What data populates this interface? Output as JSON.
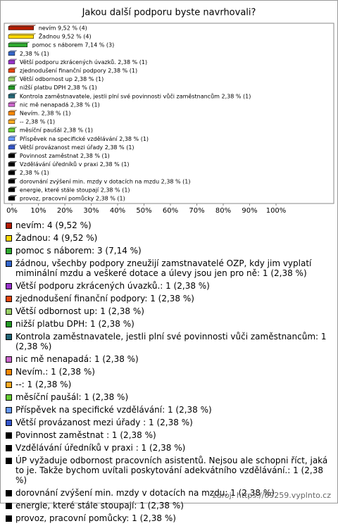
{
  "chart_data": {
    "type": "bar",
    "orientation": "horizontal",
    "title": "Jakou další podporu byste navrhovali?",
    "categories": [
      "nevím: 4 (9,52 %)",
      "Žadnou: 4 (9,52 %)",
      "pomoc s náborem: 3 (7,14 %)",
      "žádnou, všechby podpory zneužijí zamstnavatelé OZP, kdy jim vyplatí miminální mzdu a veškeré dotace a úlevy jsou jen pro ně: 1 (2,38 %)",
      "Větší podporu zkrácených úvazků.: 1 (2,38 %)",
      "zjednodušení finanční podpory: 1 (2,38 %)",
      "Větší odbornost up: 1 (2,38 %)",
      "nižší platbu DPH: 1 (2,38 %)",
      "Kontrola zaměstnavatele, jestli plní své povinnosti vůči zaměstnancům: 1 (2,38 %)",
      "nic mě nenapadá: 1 (2,38 %)",
      "Nevím.: 1 (2,38 %)",
      "--: 1 (2,38 %)",
      "měsíční paušál: 1 (2,38 %)",
      "Příspěvek na specifické vzdělávání: 1 (2,38 %)",
      "Větší provázanost mezi úřady : 1 (2,38 %)",
      "Povinnost zaměstnat : 1 (2,38 %)",
      "Vzdělávání úředníků v praxi : 1 (2,38 %)",
      "ÚP vyžaduje odbornost pracovních asistentů. Nejsou ale schopni říct, jaká to je. Takže bychom uvítali poskytování adekvátního vzdělávání.: 1 (2,38 %)",
      "dorovnání zvýšení min. mzdy v dotacích na mzdu: 1 (2,38 %)",
      "energie, které stále stoupají: 1 (2,38 %)",
      "provoz, pracovní pomůcky: 1 (2,38 %)"
    ],
    "values": [
      9.52,
      9.52,
      7.14,
      2.38,
      2.38,
      2.38,
      2.38,
      2.38,
      2.38,
      2.38,
      2.38,
      2.38,
      2.38,
      2.38,
      2.38,
      2.38,
      2.38,
      2.38,
      2.38,
      2.38,
      2.38
    ],
    "value_labels": [
      "nevím 9,52 % (4)",
      "Žadnou 9,52 % (4)",
      "pomoc s náborem 7,14 % (3)",
      "2,38 % (1)",
      "Větší podporu zkrácených úvazků. 2,38 % (1)",
      "zjednodušení finanční podpory 2,38 % (1)",
      "Větší odbornost up 2,38 % (1)",
      "nižší platbu DPH 2,38 % (1)",
      "Kontrola zaměstnavatele, jestli plní své povinnosti vůči zaměstnancům 2,38 % (1)",
      "nic mě nenapadá 2,38 % (1)",
      "Nevím. 2,38 % (1)",
      "-- 2,38 % (1)",
      "měsíční paušál 2,38 % (1)",
      "Příspěvek na specifické vzdělávání 2,38 % (1)",
      "Větší provázanost mezi úřady  2,38 % (1)",
      "Povinnost zaměstnat  2,38 % (1)",
      "Vzdělávání úředníků v praxi  2,38 % (1)",
      "2,38 % (1)",
      "dorovnání zvýšení min. mzdy v dotacích na mzdu 2,38 % (1)",
      "energie, které stále stoupají 2,38 % (1)",
      "provoz, pracovní pomůcky 2,38 % (1)"
    ],
    "colors": [
      "#b31b00",
      "#ffd700",
      "#2eaa2e",
      "#3366cc",
      "#9933cc",
      "#e8470e",
      "#99d066",
      "#229922",
      "#226677",
      "#cc66cc",
      "#ff8800",
      "#ffaa22",
      "#66cc33",
      "#6699ff",
      "#3355cc",
      "#000000",
      "#000000",
      "#000000",
      "#000000",
      "#000000",
      "#000000"
    ],
    "xlim": [
      0,
      100
    ],
    "xticks": [
      {
        "value": 0,
        "label": "0%"
      },
      {
        "value": 10,
        "label": "10%"
      },
      {
        "value": 20,
        "label": "20%"
      },
      {
        "value": 30,
        "label": "30%"
      },
      {
        "value": 40,
        "label": "40%"
      },
      {
        "value": 50,
        "label": "50%"
      },
      {
        "value": 60,
        "label": "60%"
      },
      {
        "value": 70,
        "label": "70%"
      },
      {
        "value": 80,
        "label": "80%"
      },
      {
        "value": 90,
        "label": "90%"
      },
      {
        "value": 100,
        "label": "100%"
      }
    ],
    "source": "zdroj: https://69259.vyplnto.cz"
  }
}
